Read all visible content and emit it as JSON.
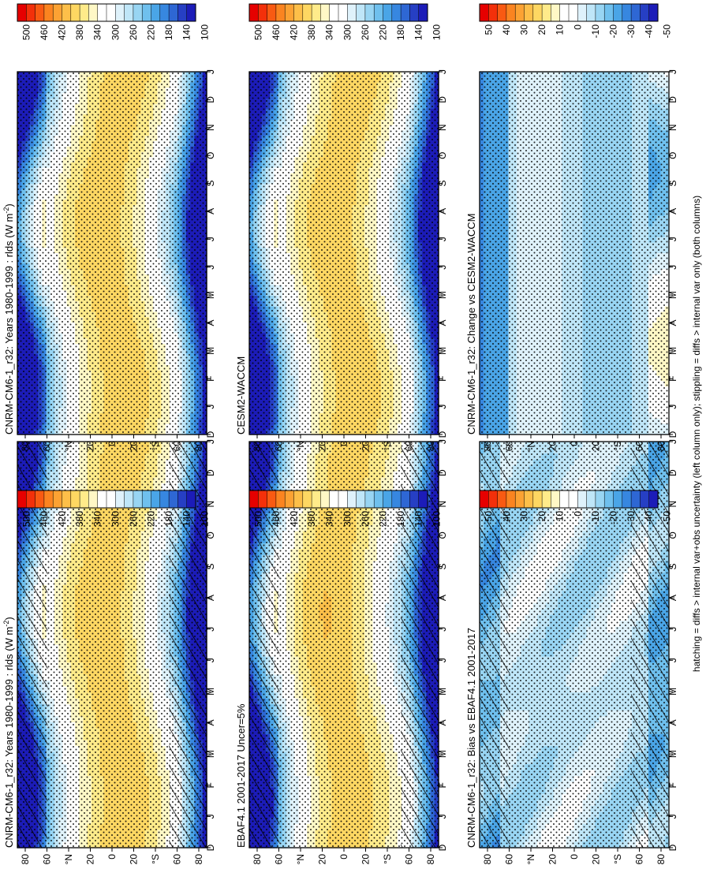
{
  "figure": {
    "footnote": "hatching = diffs > internal var+obs uncertainty (left column only); stippling = diffs > internal var only (both columns)"
  },
  "months": [
    "D",
    "J",
    "F",
    "M",
    "A",
    "M",
    "J",
    "J",
    "A",
    "S",
    "O",
    "N",
    "D",
    "J"
  ],
  "lat_ticks": [
    "80",
    "60",
    "°N",
    "20",
    "0",
    "20",
    "°S",
    "60",
    "80"
  ],
  "colors": {
    "abs": [
      "#e60000",
      "#f3300a",
      "#f95a12",
      "#fb8420",
      "#fca233",
      "#fdbf49",
      "#fed762",
      "#ffeb8a",
      "#fff8c6",
      "#ffffff",
      "#ffffff",
      "#dff2fb",
      "#bfe6f8",
      "#98d5f3",
      "#6fc0ee",
      "#4aa5e7",
      "#3787e0",
      "#2e67d4",
      "#263fc4",
      "#1c1cb8"
    ],
    "diff": [
      "#e60000",
      "#f3300a",
      "#f95a12",
      "#fb8420",
      "#fca233",
      "#fdbf49",
      "#fed762",
      "#ffeb8a",
      "#fff8c6",
      "#ffffff",
      "#ffffff",
      "#dff2fb",
      "#bfe6f8",
      "#98d5f3",
      "#6fc0ee",
      "#4aa5e7",
      "#3787e0",
      "#2e67d4",
      "#263fc4",
      "#1c1cb8"
    ]
  },
  "colorbars": {
    "abs": [
      "500",
      "460",
      "420",
      "380",
      "340",
      "300",
      "260",
      "220",
      "180",
      "140",
      "100"
    ],
    "diff": [
      "50",
      "40",
      "30",
      "20",
      "10",
      "0",
      "-10",
      "-20",
      "-30",
      "-40",
      "-50"
    ]
  },
  "panels": [
    {
      "title": "CNRM-CM6-1_r32: Years 1980-1999 : rlds (W m",
      "title_sup": "-2",
      "title_end": ")"
    },
    {
      "title": "CNRM-CM6-1_r32: Years 1980-1999 : rlds (W m",
      "title_sup": "-2",
      "title_end": ")"
    },
    {
      "title": "EBAF4.1 2001-2017 Uncer=5%"
    },
    {
      "title": "CESM2-WACCM"
    },
    {
      "title": "CNRM-CM6-1_r32: Bias vs EBAF4.1 2001-2017"
    },
    {
      "title": "CNRM-CM6-1_r32: Change vs CESM2-WACCM"
    }
  ],
  "chart_data": [
    {
      "type": "heatmap",
      "title": "CNRM-CM6-1_r32: Years 1980-1999 : rlds (W m-2)",
      "x": "month",
      "y": "latitude",
      "scale": "abs",
      "colorbar_range": [
        100,
        500
      ],
      "variant": "model",
      "hatching": true,
      "stippling": true
    },
    {
      "type": "heatmap",
      "title": "CNRM-CM6-1_r32: Years 1980-1999 : rlds (W m-2)",
      "x": "month",
      "y": "latitude",
      "scale": "abs",
      "colorbar_range": [
        100,
        500
      ],
      "variant": "model",
      "hatching": false,
      "stippling": true
    },
    {
      "type": "heatmap",
      "title": "EBAF4.1 2001-2017 Uncer=5%",
      "x": "month",
      "y": "latitude",
      "scale": "abs",
      "colorbar_range": [
        100,
        500
      ],
      "variant": "obs",
      "hatching": true,
      "stippling": true
    },
    {
      "type": "heatmap",
      "title": "CESM2-WACCM",
      "x": "month",
      "y": "latitude",
      "scale": "abs",
      "colorbar_range": [
        100,
        500
      ],
      "variant": "model",
      "hatching": false,
      "stippling": true
    },
    {
      "type": "heatmap",
      "title": "CNRM-CM6-1_r32: Bias vs EBAF4.1 2001-2017",
      "x": "month",
      "y": "latitude",
      "scale": "diff",
      "colorbar_range": [
        -50,
        50
      ],
      "variant": "bias",
      "hatching": true,
      "stippling": true
    },
    {
      "type": "heatmap",
      "title": "CNRM-CM6-1_r32: Change vs CESM2-WACCM",
      "x": "month",
      "y": "latitude",
      "scale": "diff",
      "colorbar_range": [
        -50,
        50
      ],
      "variant": "change",
      "hatching": false,
      "stippling": true
    }
  ]
}
